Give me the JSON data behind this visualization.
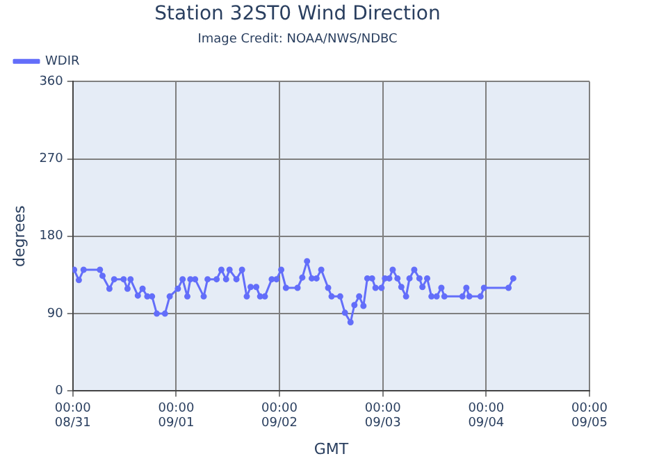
{
  "chart_data": {
    "type": "line",
    "title": "Station 32ST0 Wind Direction",
    "subtitle": "Image Credit: NOAA/NWS/NDBC",
    "xlabel": "GMT",
    "ylabel": "degrees",
    "series": [
      {
        "name": "WDIR",
        "color": "#636efa",
        "x": [
          "--08-31T00:18",
          "--08-31T01:24",
          "--08-31T02:30",
          "--08-31T06:18",
          "--08-31T06:54",
          "--08-31T08:30",
          "--08-31T09:36",
          "--08-31T11:48",
          "--08-31T12:42",
          "--08-31T13:24",
          "--08-31T15:06",
          "--08-31T16:12",
          "--08-31T17:18",
          "--08-31T18:24",
          "--08-31T19:30",
          "--08-31T21:24",
          "--08-31T22:30",
          "--09-01T00:24",
          "--09-01T01:30",
          "--09-01T02:36",
          "--09-01T03:18",
          "--09-01T04:24",
          "--09-01T06:24",
          "--09-01T07:18",
          "--09-01T09:24",
          "--09-01T10:30",
          "--09-01T11:36",
          "--09-01T12:24",
          "--09-01T14:00",
          "--09-01T15:18",
          "--09-01T16:24",
          "--09-01T17:18",
          "--09-01T18:36",
          "--09-01T19:30",
          "--09-01T20:36",
          "--09-01T22:12",
          "--09-01T23:18",
          "--09-02T00:24",
          "--09-02T01:30",
          "--09-02T04:12",
          "--09-02T05:18",
          "--09-02T06:24",
          "--09-02T07:30",
          "--09-02T08:36",
          "--09-02T09:42",
          "--09-02T11:18",
          "--09-02T12:06",
          "--09-02T14:06",
          "--09-02T15:12",
          "--09-02T16:30",
          "--09-02T17:24",
          "--09-02T18:30",
          "--09-02T19:30",
          "--09-02T20:24",
          "--09-02T21:30",
          "--09-02T22:18",
          "--09-02T23:42",
          "--09-03T00:30",
          "--09-03T01:30",
          "--09-03T02:18",
          "--09-03T03:24",
          "--09-03T04:18",
          "--09-03T05:24",
          "--09-03T06:12",
          "--09-03T07:18",
          "--09-03T08:30",
          "--09-03T09:12",
          "--09-03T10:18",
          "--09-03T11:18",
          "--09-03T12:30",
          "--09-03T13:36",
          "--09-03T14:18",
          "--09-03T18:30",
          "--09-03T19:24",
          "--09-03T20:06",
          "--09-03T22:42",
          "--09-03T23:30",
          "--09-04T05:12",
          "--09-04T06:18"
        ],
        "values": [
          141,
          129,
          141,
          141,
          134,
          119,
          130,
          130,
          119,
          130,
          111,
          119,
          110,
          110,
          90,
          90,
          110,
          119,
          130,
          110,
          130,
          130,
          110,
          130,
          130,
          141,
          130,
          141,
          130,
          141,
          110,
          121,
          121,
          110,
          110,
          130,
          130,
          141,
          120,
          120,
          132,
          151,
          131,
          131,
          141,
          120,
          110,
          110,
          91,
          80,
          100,
          110,
          99,
          131,
          131,
          120,
          120,
          131,
          131,
          141,
          131,
          121,
          110,
          131,
          141,
          131,
          121,
          131,
          110,
          110,
          120,
          110,
          110,
          120,
          110,
          110,
          120,
          120,
          131
        ]
      }
    ],
    "xlim": [
      "--08-31T00:00",
      "--09-05T00:00"
    ],
    "xticks": [
      {
        "value": "--08-31T00:00",
        "label": "00:00\n08/31"
      },
      {
        "value": "--09-01T00:00",
        "label": "00:00\n09/01"
      },
      {
        "value": "--09-02T00:00",
        "label": "00:00\n09/02"
      },
      {
        "value": "--09-03T00:00",
        "label": "00:00\n09/03"
      },
      {
        "value": "--09-04T00:00",
        "label": "00:00\n09/04"
      },
      {
        "value": "--09-05T00:00",
        "label": "00:00\n09/05"
      }
    ],
    "ylim": [
      0,
      360
    ],
    "yticks": [
      0,
      90,
      180,
      270,
      360
    ],
    "grid": true,
    "legend": "top left",
    "marker": "circle",
    "line_style": "solid"
  }
}
